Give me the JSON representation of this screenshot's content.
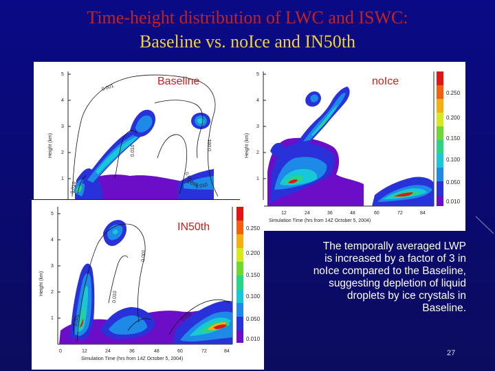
{
  "slide": {
    "title_line1": "Time-height distribution of LWC and ISWC:",
    "title_line2": "Baseline vs. noIce and IN50th",
    "note_lines": [
      "The temporally averaged LWP",
      "is increased by a factor of 3  in",
      "noIce compared to the Baseline,",
      "suggesting depletion of liquid",
      "droplets by ice crystals in",
      "Baseline."
    ],
    "page_number": "27"
  },
  "colors": {
    "background": "#0a0a7a",
    "title_line1": "#c2231f",
    "title_line2": "#f0d23a",
    "panel_title": "#c4221e",
    "note_text": "#ffffff",
    "colorscale": [
      "#6a0fc7",
      "#2832d8",
      "#1e8ae8",
      "#18c8d8",
      "#2ad486",
      "#6ed832",
      "#d8e81e",
      "#f4b010",
      "#f06010",
      "#e21414"
    ]
  },
  "chart_data": [
    {
      "type": "heatmap",
      "title": "Baseline",
      "ylabel": "Height (km)",
      "yticks": [
        "1",
        "2",
        "3",
        "4",
        "5"
      ],
      "ylim": [
        0,
        5
      ],
      "contour_labels": [
        "0.001",
        "0.010",
        "0.001",
        "0.001",
        "0.010",
        "0.050",
        "0.010"
      ]
    },
    {
      "type": "heatmap",
      "title": "noIce",
      "ylabel": "Height (km)",
      "xlabel": "Simulation Time (hrs from 14Z October 5, 2004)",
      "xticks": [
        "12",
        "24",
        "36",
        "48",
        "60",
        "72",
        "84"
      ],
      "yticks": [
        "1",
        "2",
        "3",
        "4",
        "5"
      ],
      "ylim": [
        0,
        5
      ],
      "colorbar_labels": [
        "0.250",
        "0.200",
        "0.150",
        "0.100",
        "0.050",
        "0.010"
      ]
    },
    {
      "type": "heatmap",
      "title": "IN50th",
      "ylabel": "Height (km)",
      "xlabel": "Simulation Time (hrs from 14Z October 5, 2004)",
      "xticks": [
        "0",
        "12",
        "24",
        "36",
        "48",
        "60",
        "72",
        "84"
      ],
      "yticks": [
        "1",
        "2",
        "3",
        "4",
        "5"
      ],
      "ylim": [
        0,
        5
      ],
      "colorbar_labels": [
        "0.250",
        "0.200",
        "0.150",
        "0.100",
        "0.050",
        "0.010"
      ],
      "contour_labels": [
        "0.001",
        "0.010",
        "0.050",
        "0.001"
      ]
    }
  ]
}
